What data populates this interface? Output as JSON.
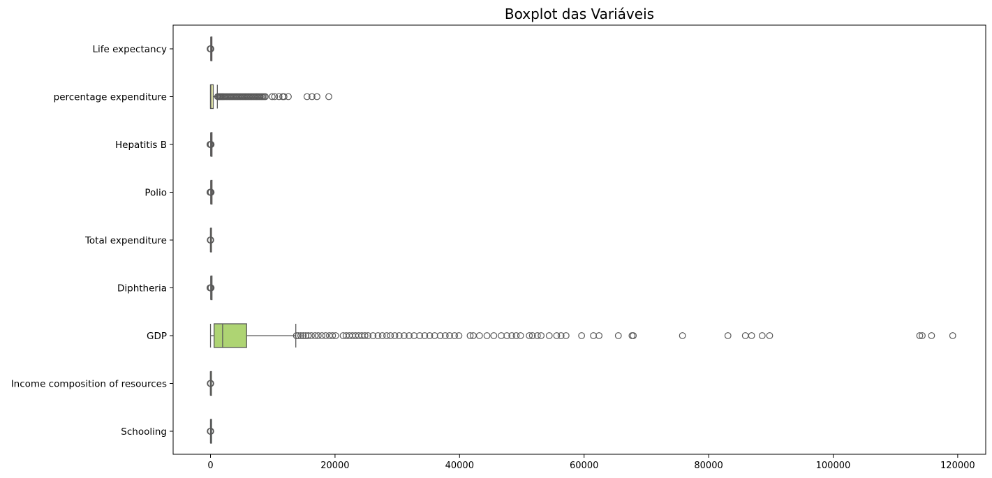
{
  "chart_data": {
    "type": "boxplot",
    "orientation": "horizontal",
    "title": "Boxplot das Variáveis",
    "xlabel": "",
    "ylabel": "",
    "xlim": [
      -6000,
      124500
    ],
    "xticks": [
      0,
      20000,
      40000,
      60000,
      80000,
      100000,
      120000
    ],
    "xtick_labels": [
      "0",
      "20000",
      "40000",
      "60000",
      "80000",
      "100000",
      "120000"
    ],
    "grid": false,
    "legend": false,
    "line_color": "#595959",
    "series": [
      {
        "name": "Life expectancy",
        "color": "#9c2f45",
        "min": 36,
        "q1": 63,
        "median": 72,
        "q3": 75,
        "max": 89,
        "outliers": [
          -60,
          -20,
          10,
          20,
          30,
          60
        ]
      },
      {
        "name": "percentage expenditure",
        "color": "#f3f7b2",
        "min": 0,
        "q1": 4.7,
        "median": 65,
        "q3": 442,
        "max": 1100,
        "outliers": [
          1150,
          1300,
          1450,
          1600,
          1750,
          1900,
          2050,
          2200,
          2400,
          2600,
          2800,
          3000,
          3200,
          3400,
          3600,
          3800,
          4000,
          4200,
          4400,
          4600,
          4800,
          5000,
          5200,
          5400,
          5600,
          5800,
          6000,
          6200,
          6400,
          6600,
          6800,
          7000,
          7200,
          7400,
          7600,
          7800,
          8000,
          8200,
          8400,
          8600,
          8800,
          9900,
          10300,
          11000,
          11600,
          11800,
          12500,
          15500,
          16300,
          17100,
          19000
        ]
      },
      {
        "name": "Hepatitis B",
        "color": "#e9534a",
        "min": 22,
        "q1": 77,
        "median": 92,
        "q3": 97,
        "max": 99,
        "outliers": [
          -80,
          -40,
          0,
          20,
          60,
          100
        ]
      },
      {
        "name": "Polio",
        "color": "#f9a65a",
        "min": 30,
        "q1": 78,
        "median": 93,
        "q3": 97,
        "max": 99,
        "outliers": [
          -80,
          -40,
          0,
          20,
          60,
          100
        ]
      },
      {
        "name": "Total expenditure",
        "color": "#feddb0",
        "min": 0.4,
        "q1": 4.3,
        "median": 5.8,
        "q3": 7.5,
        "max": 12.3,
        "outliers": [
          -40,
          0,
          20,
          40
        ]
      },
      {
        "name": "Diphtheria",
        "color": "#d2e8a4",
        "min": 30,
        "q1": 78,
        "median": 93,
        "q3": 97,
        "max": 99,
        "outliers": [
          -80,
          -40,
          0,
          20,
          60,
          100
        ]
      },
      {
        "name": "GDP",
        "color": "#aed473",
        "min": 1.7,
        "q1": 580,
        "median": 1950,
        "q3": 5800,
        "max": 13700,
        "outliers": [
          13800,
          14100,
          14500,
          14900,
          15300,
          15700,
          16200,
          16800,
          17300,
          17900,
          18500,
          19100,
          19600,
          20100,
          21300,
          21800,
          22300,
          22800,
          23300,
          23800,
          24300,
          24800,
          25300,
          26100,
          26900,
          27600,
          28300,
          28900,
          29600,
          30300,
          31100,
          31900,
          32700,
          33600,
          34400,
          35200,
          36000,
          36900,
          37700,
          38400,
          39200,
          39900,
          41700,
          42200,
          43200,
          44400,
          45500,
          46700,
          47600,
          48400,
          49100,
          49800,
          51200,
          51700,
          52500,
          53100,
          54400,
          55600,
          56300,
          57100,
          59600,
          61500,
          62400,
          65500,
          67700,
          67900,
          75800,
          83100,
          85900,
          86900,
          88600,
          89800,
          113900,
          114300,
          115800,
          119200
        ]
      },
      {
        "name": "Income composition of resources",
        "color": "#d4ecae",
        "min": 0,
        "q1": 0.49,
        "median": 0.68,
        "q3": 0.78,
        "max": 0.95,
        "outliers": [
          -40,
          0,
          20,
          40
        ]
      },
      {
        "name": "Schooling",
        "color": "#67b9ab",
        "min": 0,
        "q1": 10.1,
        "median": 12.3,
        "q3": 14.3,
        "max": 20.7,
        "outliers": [
          -40,
          0,
          20,
          40
        ]
      }
    ]
  }
}
